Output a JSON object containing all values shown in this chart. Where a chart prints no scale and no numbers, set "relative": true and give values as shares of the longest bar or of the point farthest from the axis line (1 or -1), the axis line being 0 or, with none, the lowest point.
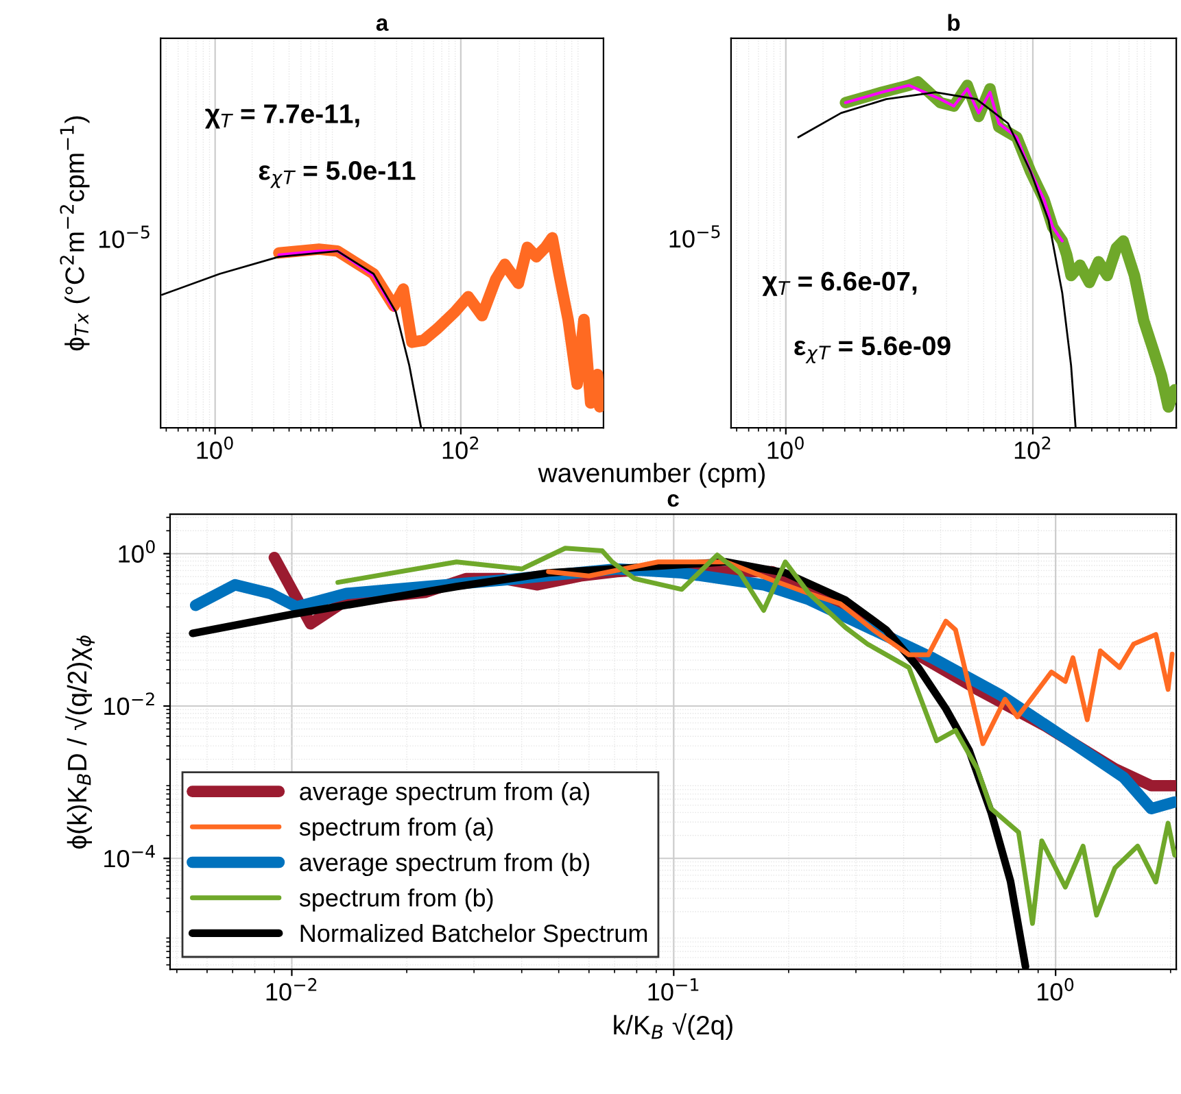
{
  "chart_data": [
    {
      "type": "line",
      "title": "a",
      "relative": true,
      "log": "x",
      "grid": true,
      "ylabel": "ϕ$_{T}$$_{x}$ (°C$^{2}$m$^{−2}$cpm$^{−1}$)",
      "xlabel": "wavenumber (cpm)",
      "xlim": [
        0.36,
        1450
      ],
      "xticks": [
        {
          "value": 1,
          "label": "10$^{0}$"
        },
        {
          "value": 100,
          "label": "10$^{2}$"
        }
      ],
      "annotations": [
        "χ$_{T}$ = 7.7e-11,",
        "ε$_{χ}$$_{T}$ = 5.0e-11",
        "10$^{−5}$"
      ],
      "series": [
        {
          "color": "#ff6a22",
          "x": [
            3.3,
            7.0,
            9.9,
            19.5,
            28.5,
            34,
            40,
            49.5,
            64,
            89.5,
            115,
            149,
            192,
            228,
            294,
            348,
            412,
            489,
            555,
            630,
            747,
            885,
            1005,
            1140,
            1295,
            1350
          ],
          "values": [
            0.92,
            0.94,
            0.93,
            0.81,
            0.64,
            0.73,
            0.45,
            0.46,
            0.52,
            0.61,
            0.69,
            0.59,
            0.78,
            0.86,
            0.76,
            0.95,
            0.9,
            0.95,
            1.0,
            0.81,
            0.57,
            0.23,
            0.57,
            0.13,
            0.28,
            0.11
          ]
        },
        {
          "color": "#ff00ff",
          "x": [
            3.3,
            7.0,
            9.9,
            19.5,
            28.5
          ],
          "values": [
            0.91,
            0.93,
            0.93,
            0.8,
            0.62
          ]
        },
        {
          "color": "#000000",
          "x": [
            0.37,
            1.09,
            3.3,
            9.9,
            19.5,
            29.6,
            38,
            47.5
          ],
          "values": [
            0.7,
            0.81,
            0.9,
            0.93,
            0.81,
            0.61,
            0.33,
            0
          ]
        }
      ]
    },
    {
      "type": "line",
      "title": "b",
      "relative": true,
      "log": "x",
      "grid": true,
      "xlim": [
        0.36,
        1450
      ],
      "xticks": [
        {
          "value": 1,
          "label": "10$^{0}$"
        },
        {
          "value": 100,
          "label": "10$^{2}$"
        }
      ],
      "annotations": [
        "χ$_{T}$ = 6.6e-07,",
        "ε$_{χ}$$_{T}$ = 5.6e-09",
        "10$^{−5}$"
      ],
      "series": [
        {
          "color": "#6fa82a",
          "x": [
            3.04,
            6.0,
            9.9,
            11.7,
            17.8,
            22.9,
            29.5,
            36.4,
            45,
            53,
            74,
            96,
            123,
            145,
            173,
            188,
            204,
            241,
            287,
            340,
            401,
            475,
            540,
            665,
            790,
            935,
            1100,
            1250,
            1410
          ],
          "values": [
            0.94,
            0.97,
            0.99,
            1.0,
            0.94,
            0.93,
            0.99,
            0.9,
            0.98,
            0.87,
            0.84,
            0.74,
            0.66,
            0.58,
            0.54,
            0.5,
            0.44,
            0.47,
            0.42,
            0.48,
            0.44,
            0.52,
            0.54,
            0.44,
            0.31,
            0.23,
            0.15,
            0.06,
            0.11
          ]
        },
        {
          "color": "#ff00ff",
          "x": [
            3.04,
            6.0,
            9.9,
            17.8,
            22.9,
            29.5,
            36.4,
            45,
            53,
            74,
            96,
            123,
            145,
            173
          ],
          "values": [
            0.94,
            0.97,
            0.99,
            0.95,
            0.93,
            0.98,
            0.91,
            0.97,
            0.88,
            0.84,
            0.74,
            0.66,
            0.58,
            0.54
          ]
        },
        {
          "color": "#000000",
          "x": [
            1.26,
            2.8,
            6.5,
            16.3,
            35,
            63,
            96,
            134,
            173,
            204,
            222
          ],
          "values": [
            0.84,
            0.91,
            0.95,
            0.97,
            0.95,
            0.88,
            0.74,
            0.6,
            0.39,
            0.18,
            0
          ]
        }
      ]
    },
    {
      "type": "line",
      "title": "c",
      "log": "xy",
      "grid": true,
      "legend": "bottom left",
      "xlabel": "k/K$_{B}$ √(2q)",
      "ylabel": "ϕ(k)K$_{B}$D / √(q/2)χ$_{ϕ}$",
      "xlim": [
        0.0048,
        2.07
      ],
      "xticks": [
        {
          "value": 0.01,
          "label": "10$^{−2}$"
        },
        {
          "value": 0.1,
          "label": "10$^{−1}$"
        },
        {
          "value": 1,
          "label": "10$^{0}$"
        }
      ],
      "ylim": [
        3.5e-06,
        3.3
      ],
      "yticks": [
        {
          "value": 1,
          "label": "10$^{0}$"
        },
        {
          "value": 0.01,
          "label": "10$^{−2}$"
        },
        {
          "value": 0.0001,
          "label": "10$^{−4}$"
        }
      ],
      "series": [
        {
          "name": "average spectrum from (a)",
          "color": "#9b1b30",
          "x": [
            0.009,
            0.0112,
            0.0139,
            0.0223,
            0.0286,
            0.0357,
            0.044,
            0.057,
            0.071,
            0.091,
            0.137,
            0.181,
            0.239,
            0.333,
            0.449,
            0.624,
            0.944,
            1.43,
            1.78,
            2.05
          ],
          "values": [
            0.89,
            0.12,
            0.245,
            0.31,
            0.47,
            0.47,
            0.39,
            0.51,
            0.58,
            0.63,
            0.58,
            0.58,
            0.3,
            0.11,
            0.043,
            0.0165,
            0.0054,
            0.0015,
            0.0009,
            0.0009
          ]
        },
        {
          "name": "spectrum from (a)",
          "color": "#ff6a22",
          "x": [
            0.047,
            0.06,
            0.091,
            0.137,
            0.181,
            0.226,
            0.273,
            0.333,
            0.413,
            0.464,
            0.516,
            0.547,
            0.645,
            0.737,
            0.794,
            0.848,
            0.975,
            1.06,
            1.11,
            1.21,
            1.31,
            1.47,
            1.6,
            1.83,
            1.97,
            2.02
          ],
          "values": [
            0.58,
            0.51,
            0.78,
            0.78,
            0.45,
            0.3,
            0.22,
            0.1,
            0.047,
            0.047,
            0.13,
            0.1,
            0.0032,
            0.0123,
            0.0072,
            0.011,
            0.028,
            0.021,
            0.043,
            0.0066,
            0.053,
            0.032,
            0.065,
            0.087,
            0.0165,
            0.048
          ]
        },
        {
          "name": "average spectrum from (b)",
          "color": "#0072bd",
          "x": [
            0.0056,
            0.0071,
            0.0088,
            0.0103,
            0.0139,
            0.0223,
            0.0357,
            0.071,
            0.105,
            0.172,
            0.226,
            0.333,
            0.475,
            0.718,
            1.086,
            1.51,
            1.78,
            2.05
          ],
          "values": [
            0.21,
            0.39,
            0.3,
            0.2,
            0.3,
            0.37,
            0.45,
            0.63,
            0.56,
            0.39,
            0.25,
            0.1,
            0.043,
            0.0139,
            0.0035,
            0.00115,
            0.00045,
            0.00055
          ]
        },
        {
          "name": "spectrum from (b)",
          "color": "#6fa82a",
          "x": [
            0.0132,
            0.027,
            0.04,
            0.052,
            0.065,
            0.069,
            0.079,
            0.105,
            0.13,
            0.149,
            0.172,
            0.196,
            0.226,
            0.282,
            0.322,
            0.413,
            0.488,
            0.547,
            0.624,
            0.678,
            0.8,
            0.87,
            0.92,
            1.06,
            1.18,
            1.28,
            1.43,
            1.64,
            1.83,
            1.97,
            2.05
          ],
          "values": [
            0.42,
            0.78,
            0.63,
            1.18,
            1.09,
            0.78,
            0.47,
            0.34,
            0.96,
            0.56,
            0.18,
            0.78,
            0.3,
            0.107,
            0.065,
            0.032,
            0.0035,
            0.0048,
            0.0015,
            0.00045,
            0.00022,
            1.4e-05,
            0.00017,
            4.2e-05,
            0.000145,
            1.8e-05,
            7.5e-05,
            0.000145,
            4.9e-05,
            0.00029,
            0.00011
          ]
        },
        {
          "name": "Normalized Batchelor Spectrum",
          "color": "#000000",
          "x": [
            0.0055,
            0.01,
            0.027,
            0.047,
            0.137,
            0.196,
            0.282,
            0.36,
            0.437,
            0.516,
            0.594,
            0.678,
            0.762,
            0.834
          ],
          "values": [
            0.09,
            0.16,
            0.37,
            0.56,
            0.78,
            0.56,
            0.245,
            0.1,
            0.032,
            0.0092,
            0.0026,
            0.0004,
            5e-05,
            3.8e-06
          ]
        }
      ]
    }
  ]
}
